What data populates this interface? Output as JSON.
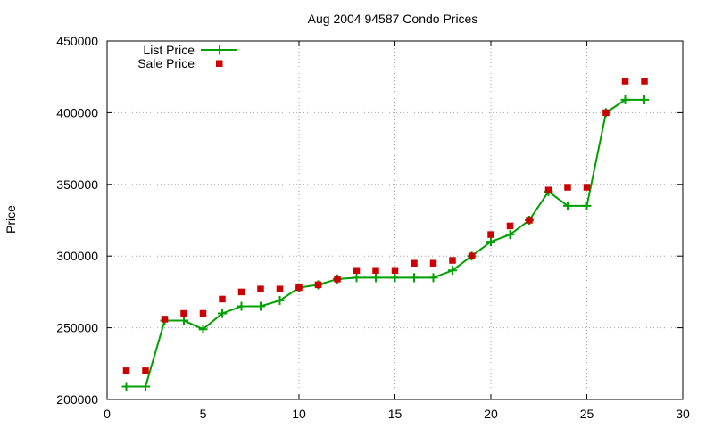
{
  "chart_data": {
    "type": "line",
    "title": "Aug 2004 94587 Condo Prices",
    "xlabel": "",
    "ylabel": "Price",
    "xlim": [
      0,
      30
    ],
    "ylim": [
      200000,
      450000
    ],
    "xticks": [
      "0",
      "5",
      "10",
      "15",
      "20",
      "25",
      "30"
    ],
    "yticks": [
      "200000",
      "250000",
      "300000",
      "350000",
      "400000",
      "450000"
    ],
    "grid": true,
    "legend_position": "top-left",
    "series": [
      {
        "name": "List Price",
        "style": "line-with-plus-markers",
        "color": "#00a000",
        "x": [
          1,
          2,
          3,
          4,
          5,
          6,
          7,
          8,
          9,
          10,
          11,
          12,
          13,
          14,
          15,
          16,
          17,
          18,
          19,
          20,
          21,
          22,
          23,
          24,
          25,
          26,
          27,
          28
        ],
        "values": [
          209000,
          209000,
          255000,
          255000,
          249000,
          260000,
          265000,
          265000,
          269000,
          278000,
          280000,
          284000,
          285000,
          285000,
          285000,
          285000,
          285000,
          290000,
          300000,
          310000,
          315000,
          325000,
          345000,
          335000,
          335000,
          400000,
          409000,
          409000
        ]
      },
      {
        "name": "Sale Price",
        "style": "square-markers",
        "color": "#cc0000",
        "x": [
          1,
          2,
          3,
          4,
          5,
          6,
          7,
          8,
          9,
          10,
          11,
          12,
          13,
          14,
          15,
          16,
          17,
          18,
          19,
          20,
          21,
          22,
          23,
          24,
          25,
          26,
          27,
          28
        ],
        "values": [
          220000,
          220000,
          256000,
          260000,
          260000,
          270000,
          275000,
          277000,
          277000,
          278000,
          280000,
          284000,
          290000,
          290000,
          290000,
          295000,
          295000,
          297000,
          300000,
          315000,
          321000,
          325000,
          346000,
          348000,
          348000,
          400000,
          422000,
          422000
        ]
      }
    ]
  }
}
